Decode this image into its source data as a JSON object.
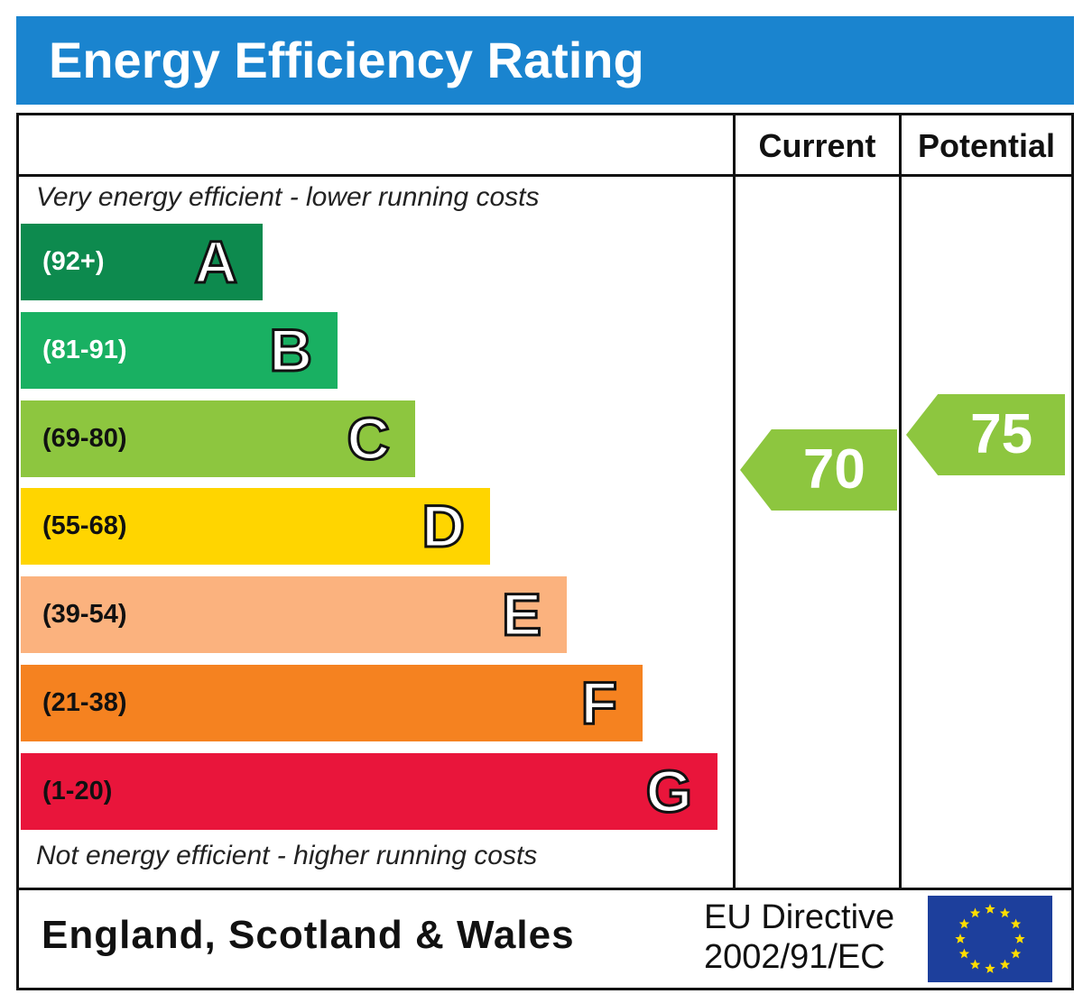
{
  "title": "Energy Efficiency Rating",
  "columns": {
    "current": "Current",
    "potential": "Potential"
  },
  "captions": {
    "top": "Very energy efficient - lower running costs",
    "bottom": "Not energy efficient - higher running costs"
  },
  "chart_data": {
    "type": "bar",
    "categories": [
      "A",
      "B",
      "C",
      "D",
      "E",
      "F",
      "G"
    ],
    "bands": [
      {
        "letter": "A",
        "range": "(92+)",
        "min": 92,
        "max": 100,
        "color": "#0d8a4e",
        "range_color": "#ffffff"
      },
      {
        "letter": "B",
        "range": "(81-91)",
        "min": 81,
        "max": 91,
        "color": "#19b062",
        "range_color": "#ffffff"
      },
      {
        "letter": "C",
        "range": "(69-80)",
        "min": 69,
        "max": 80,
        "color": "#8dc63f",
        "range_color": "#111111"
      },
      {
        "letter": "D",
        "range": "(55-68)",
        "min": 55,
        "max": 68,
        "color": "#ffd500",
        "range_color": "#111111"
      },
      {
        "letter": "E",
        "range": "(39-54)",
        "min": 39,
        "max": 54,
        "color": "#fbb27e",
        "range_color": "#111111"
      },
      {
        "letter": "F",
        "range": "(21-38)",
        "min": 21,
        "max": 38,
        "color": "#f58220",
        "range_color": "#111111"
      },
      {
        "letter": "G",
        "range": "(1-20)",
        "min": 1,
        "max": 20,
        "color": "#e9153b",
        "range_color": "#111111"
      }
    ],
    "current": 70,
    "potential": 75,
    "current_band": "C",
    "potential_band": "C",
    "arrow_color": "#8dc63f"
  },
  "footer": {
    "country": "England, Scotland & Wales",
    "directive_line1": "EU Directive",
    "directive_line2": "2002/91/EC",
    "flag_color": "#1d3f9c",
    "star_color": "#ffdd00"
  }
}
